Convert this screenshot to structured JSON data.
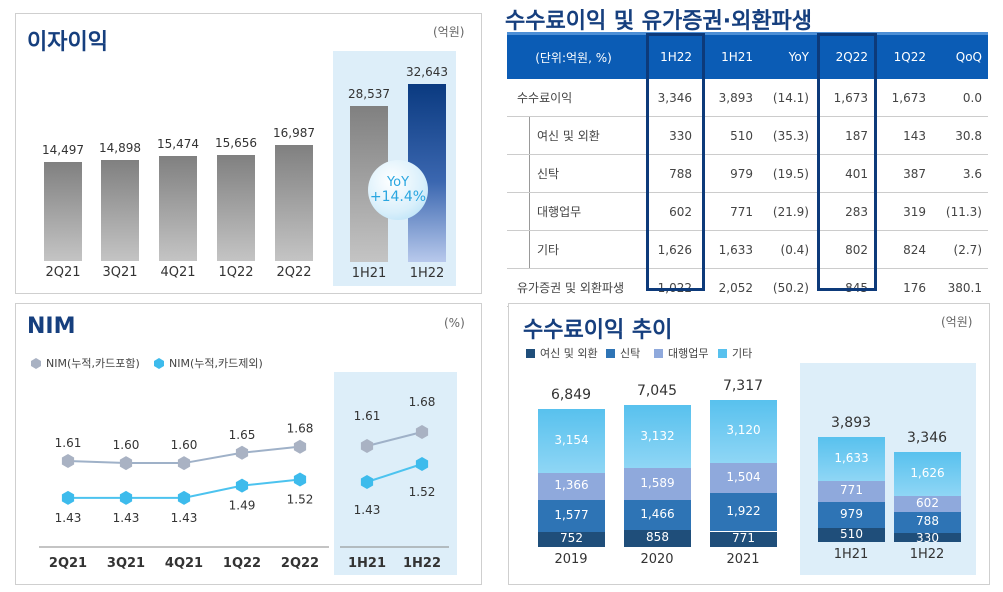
{
  "fee_table": {
    "title": "수수료이익 및 유가증권·외환파생",
    "headers": [
      "(단위:억원, %)",
      "1H22",
      "1H21",
      "YoY",
      "2Q22",
      "1Q22",
      "QoQ"
    ],
    "rows": [
      {
        "label": "수수료이익",
        "values": [
          "3,346",
          "3,893",
          "(14.1)",
          "1,673",
          "1,673",
          "0.0"
        ]
      },
      {
        "label": "여신 및 외환",
        "values": [
          "330",
          "510",
          "(35.3)",
          "187",
          "143",
          "30.8"
        ],
        "sub": true
      },
      {
        "label": "신탁",
        "values": [
          "788",
          "979",
          "(19.5)",
          "401",
          "387",
          "3.6"
        ],
        "sub": true
      },
      {
        "label": "대행업무",
        "values": [
          "602",
          "771",
          "(21.9)",
          "283",
          "319",
          "(11.3)"
        ],
        "sub": true
      },
      {
        "label": "기타",
        "values": [
          "1,626",
          "1,633",
          "(0.4)",
          "802",
          "824",
          "(2.7)"
        ],
        "sub": true
      },
      {
        "label": "유가증권 및 외환파생",
        "values": [
          "1,022",
          "2,052",
          "(50.2)",
          "845",
          "176",
          "380.1"
        ]
      }
    ]
  },
  "chart_data": [
    {
      "type": "bar",
      "title": "이자이익",
      "unit": "(억원)",
      "categories": [
        "2Q21",
        "3Q21",
        "4Q21",
        "1Q22",
        "2Q22"
      ],
      "values": [
        14497,
        14898,
        15474,
        15656,
        16987
      ],
      "value_labels": [
        "14,497",
        "14,898",
        "15,474",
        "15,656",
        "16,987"
      ],
      "half_categories": [
        "1H21",
        "1H22"
      ],
      "half_values": [
        28537,
        32643
      ],
      "half_value_labels": [
        "28,537",
        "32,643"
      ],
      "annotation": {
        "label": "YoY",
        "value": "+14.4%"
      },
      "colors": {
        "quarter": "#8a8a8a",
        "half_prev": "#8a8a8a",
        "half_curr": "#0a3a80"
      }
    },
    {
      "type": "line",
      "title": "NIM",
      "unit": "(%)",
      "categories": [
        "2Q21",
        "3Q21",
        "4Q21",
        "1Q22",
        "2Q22"
      ],
      "half_categories": [
        "1H21",
        "1H22"
      ],
      "legend_position": "top-left",
      "series": [
        {
          "name": "NIM(누적,카드포함)",
          "values": [
            1.61,
            1.6,
            1.6,
            1.65,
            1.68
          ],
          "half_values": [
            1.61,
            1.68
          ],
          "color": "#a9b2c3"
        },
        {
          "name": "NIM(누적,카드제외)",
          "values": [
            1.43,
            1.43,
            1.43,
            1.49,
            1.52
          ],
          "half_values": [
            1.43,
            1.52
          ],
          "color": "#3dbbec"
        }
      ]
    },
    {
      "type": "bar",
      "stacked": true,
      "title": "수수료이익 추이",
      "unit": "(억원)",
      "categories": [
        "2019",
        "2020",
        "2021",
        "1H21",
        "1H22"
      ],
      "totals": [
        "6,849",
        "7,045",
        "7,317",
        "3,893",
        "3,346"
      ],
      "legend_position": "top-left",
      "series": [
        {
          "name": "여신 및 외환",
          "color": "#1f4e7a",
          "values": [
            752,
            858,
            771,
            510,
            330
          ]
        },
        {
          "name": "신탁",
          "color": "#2e74b5",
          "values": [
            1577,
            1466,
            1922,
            979,
            788
          ]
        },
        {
          "name": "대행업무",
          "color": "#8fa9dc",
          "values": [
            1366,
            1589,
            1504,
            771,
            602
          ]
        },
        {
          "name": "기타",
          "color": "#58c1ee",
          "values": [
            3154,
            3132,
            3120,
            1633,
            1626
          ]
        }
      ]
    }
  ]
}
